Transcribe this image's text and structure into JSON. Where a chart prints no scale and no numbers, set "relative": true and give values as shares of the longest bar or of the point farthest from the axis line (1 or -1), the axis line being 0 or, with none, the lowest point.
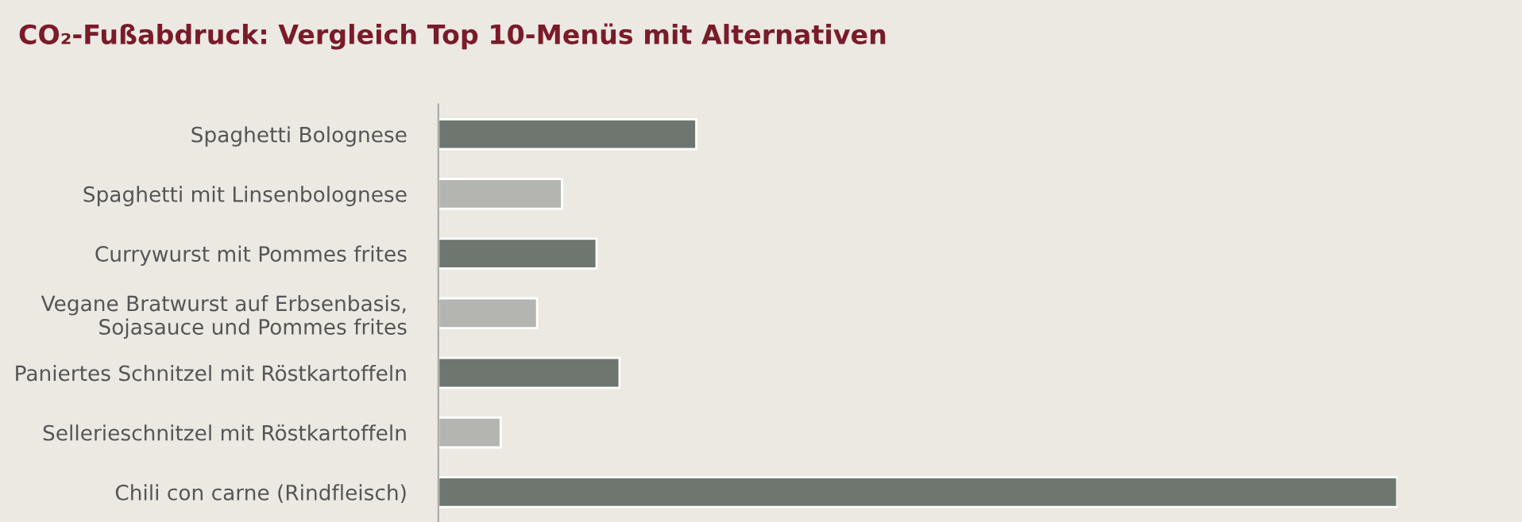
{
  "chart_data": {
    "type": "bar",
    "orientation": "horizontal",
    "relative": true,
    "title": "CO₂-Fußabdruck: Vergleich Top 10-Menüs mit Alternativen",
    "categories": [
      "Spaghetti Bolognese",
      "Spaghetti mit Linsenbolognese",
      "Currywurst mit Pommes frites",
      "Vegane Bratwurst auf Erbsenbasis,\nSojasauce und Pommes frites",
      "Paniertes Schnitzel mit Röstkartoffeln",
      "Sellerieschnitzel mit Röstkartoffeln",
      "Chili con carne (Rindfleisch)"
    ],
    "values": [
      0.269,
      0.129,
      0.165,
      0.103,
      0.189,
      0.065,
      1.0
    ],
    "colors": [
      "#6e766f",
      "#b4b5b0",
      "#6e766f",
      "#b4b5b0",
      "#6e766f",
      "#b4b5b0",
      "#6e766f"
    ],
    "grid": false,
    "legend": false,
    "tick_labels": "y"
  }
}
